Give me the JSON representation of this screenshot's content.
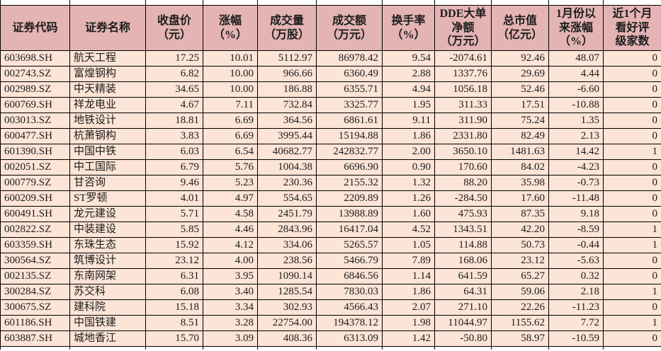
{
  "colors": {
    "header_bg": "#e3b4b3",
    "row_bg": "#fce4d6",
    "border": "#000000",
    "text": "#1c1c1c"
  },
  "table": {
    "columns": [
      {
        "id": "code",
        "label": "证券代码",
        "align": "left"
      },
      {
        "id": "name",
        "label": "证券名称",
        "align": "left"
      },
      {
        "id": "close-price",
        "label": "收盘价\n（元）",
        "align": "right"
      },
      {
        "id": "change-pct",
        "label": "涨幅\n（%）",
        "align": "right"
      },
      {
        "id": "volume",
        "label": "成交量\n（万股）",
        "align": "right"
      },
      {
        "id": "turnover",
        "label": "成交额\n（万元）",
        "align": "right"
      },
      {
        "id": "turnover-rate",
        "label": "换手率\n（%）",
        "align": "right"
      },
      {
        "id": "dde-net",
        "label": "DDE大单\n净额\n（万元）",
        "align": "right"
      },
      {
        "id": "market-cap",
        "label": "总市值\n（亿元）",
        "align": "right"
      },
      {
        "id": "ytd-change",
        "label": "1月份以\n来涨幅\n（%）",
        "align": "right"
      },
      {
        "id": "rating-count",
        "label": "近1个月\n看好评\n级家数",
        "align": "right"
      }
    ],
    "rows": [
      [
        "603698.SH",
        "航天工程",
        "17.25",
        "10.01",
        "5112.97",
        "86978.42",
        "9.54",
        "-2074.61",
        "92.46",
        "48.07",
        "0"
      ],
      [
        "002743.SZ",
        "富煌钢构",
        "6.82",
        "10.00",
        "966.66",
        "6360.49",
        "2.88",
        "1337.76",
        "29.69",
        "4.44",
        "0"
      ],
      [
        "002989.SZ",
        "中天精装",
        "34.65",
        "10.00",
        "186.88",
        "6355.71",
        "4.94",
        "1056.18",
        "52.46",
        "-6.60",
        "0"
      ],
      [
        "600769.SH",
        "祥龙电业",
        "4.67",
        "7.11",
        "732.84",
        "3325.77",
        "1.95",
        "311.33",
        "17.51",
        "-10.88",
        "0"
      ],
      [
        "003013.SZ",
        "地铁设计",
        "18.81",
        "6.69",
        "364.56",
        "6861.61",
        "9.11",
        "311.90",
        "75.24",
        "1.35",
        "0"
      ],
      [
        "600477.SH",
        "杭萧钢构",
        "3.83",
        "6.69",
        "3995.44",
        "15194.88",
        "1.86",
        "2331.80",
        "82.49",
        "2.13",
        "0"
      ],
      [
        "601390.SH",
        "中国中铁",
        "6.03",
        "6.54",
        "40682.77",
        "242832.77",
        "2.00",
        "3650.10",
        "1481.63",
        "14.42",
        "1"
      ],
      [
        "002051.SZ",
        "中工国际",
        "6.79",
        "5.76",
        "1004.38",
        "6696.90",
        "0.90",
        "170.60",
        "84.02",
        "-4.23",
        "0"
      ],
      [
        "000779.SZ",
        "甘咨询",
        "9.46",
        "5.23",
        "230.36",
        "2155.32",
        "1.32",
        "88.20",
        "35.98",
        "-0.73",
        "0"
      ],
      [
        "600209.SH",
        "ST罗顿",
        "4.01",
        "4.97",
        "554.65",
        "2209.89",
        "1.26",
        "-284.50",
        "17.60",
        "-11.48",
        "0"
      ],
      [
        "600491.SH",
        "龙元建设",
        "5.71",
        "4.58",
        "2451.79",
        "13988.89",
        "1.60",
        "475.93",
        "87.35",
        "9.18",
        "0"
      ],
      [
        "002822.SZ",
        "中装建设",
        "5.85",
        "4.46",
        "2843.96",
        "16417.04",
        "4.52",
        "1343.51",
        "42.20",
        "-8.59",
        "1"
      ],
      [
        "603359.SH",
        "东珠生态",
        "15.92",
        "4.12",
        "334.06",
        "5265.57",
        "1.05",
        "114.88",
        "50.73",
        "-0.44",
        "1"
      ],
      [
        "300564.SZ",
        "筑博设计",
        "23.12",
        "4.00",
        "238.56",
        "5466.79",
        "7.89",
        "168.06",
        "23.12",
        "-5.63",
        "0"
      ],
      [
        "002135.SZ",
        "东南网架",
        "6.31",
        "3.95",
        "1090.14",
        "6846.56",
        "1.14",
        "641.59",
        "65.27",
        "0.32",
        "0"
      ],
      [
        "300284.SZ",
        "苏交科",
        "6.08",
        "3.40",
        "1285.54",
        "7830.03",
        "1.86",
        "64.31",
        "59.06",
        "2.18",
        "1"
      ],
      [
        "300675.SZ",
        "建科院",
        "15.18",
        "3.34",
        "302.93",
        "4566.43",
        "2.07",
        "271.10",
        "22.26",
        "-11.23",
        "0"
      ],
      [
        "601186.SH",
        "中国铁建",
        "8.51",
        "3.28",
        "22754.00",
        "194378.12",
        "1.98",
        "11044.97",
        "1155.62",
        "7.72",
        "1"
      ],
      [
        "603887.SH",
        "城地香江",
        "15.70",
        "3.09",
        "408.36",
        "6313.09",
        "1.42",
        "-50.80",
        "58.97",
        "-10.59",
        "0"
      ]
    ]
  }
}
